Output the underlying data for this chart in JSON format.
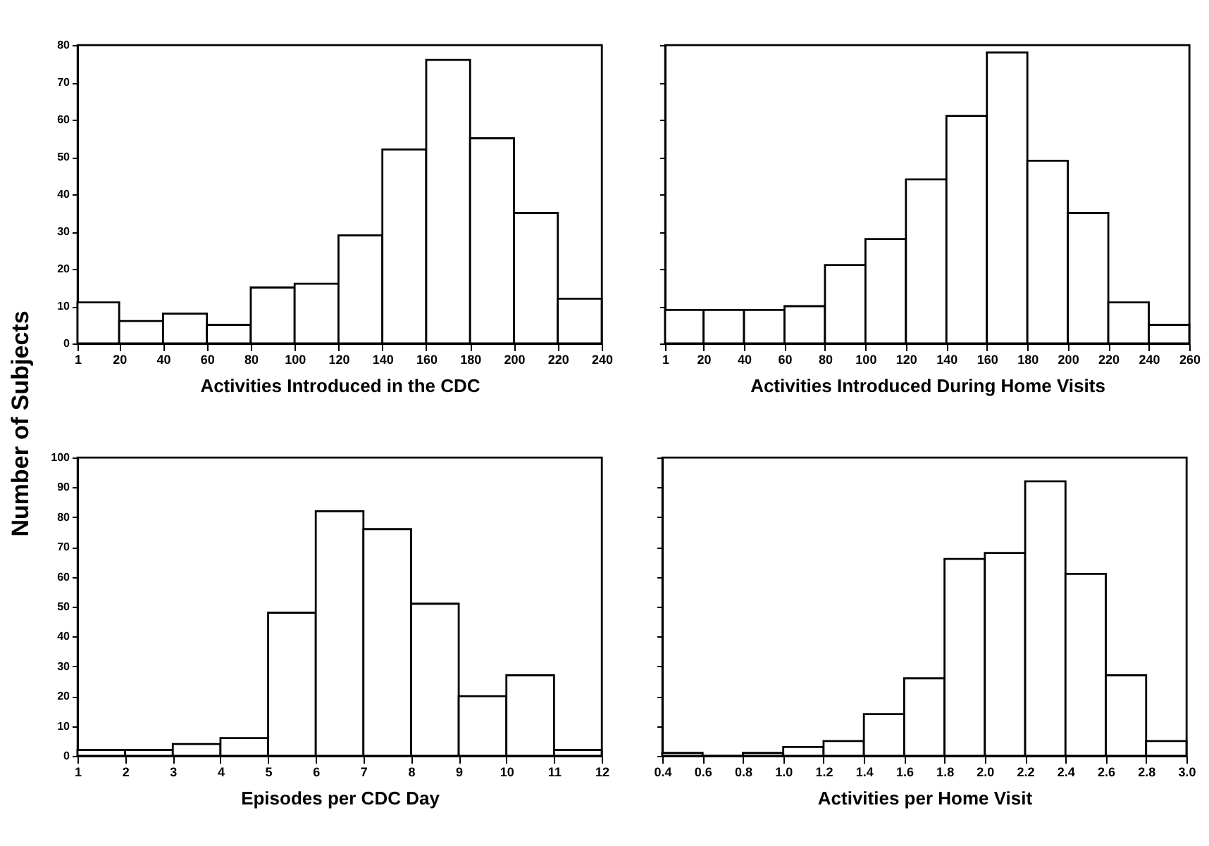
{
  "chart_data": [
    {
      "type": "histogram",
      "xlabel": "Activities Introduced in the CDC",
      "ylabel": "Number of Subjects",
      "bins": [
        1,
        20,
        40,
        60,
        80,
        100,
        120,
        140,
        160,
        180,
        200,
        220,
        240
      ],
      "values": [
        11,
        6,
        8,
        5,
        15,
        16,
        29,
        52,
        76,
        55,
        35,
        12
      ],
      "xlim": [
        1,
        240
      ],
      "xticks": [
        1,
        20,
        40,
        60,
        80,
        100,
        120,
        140,
        160,
        180,
        200,
        220,
        240
      ],
      "ylim": [
        0,
        80
      ],
      "yticks": [
        0,
        10,
        20,
        30,
        40,
        50,
        60,
        70,
        80
      ]
    },
    {
      "type": "histogram",
      "xlabel": "Activities Introduced During Home Visits",
      "bins": [
        1,
        20,
        40,
        60,
        80,
        100,
        120,
        140,
        160,
        180,
        200,
        220,
        240,
        260
      ],
      "values": [
        9,
        9,
        9,
        10,
        21,
        28,
        44,
        61,
        78,
        49,
        35,
        11,
        5
      ],
      "xlim": [
        1,
        260
      ],
      "xticks": [
        1,
        20,
        40,
        60,
        80,
        100,
        120,
        140,
        160,
        180,
        200,
        220,
        240,
        260
      ],
      "ylim": [
        0,
        80
      ],
      "yticks": [
        0,
        10,
        20,
        30,
        40,
        50,
        60,
        70,
        80
      ],
      "tick_labels": "x"
    },
    {
      "type": "histogram",
      "xlabel": "Episodes per CDC Day",
      "bins": [
        1,
        2,
        3,
        4,
        5,
        6,
        7,
        8,
        9,
        10,
        11,
        12
      ],
      "values": [
        2,
        2,
        4,
        6,
        48,
        82,
        76,
        51,
        20,
        27,
        2
      ],
      "xlim": [
        1,
        12
      ],
      "xticks": [
        1,
        2,
        3,
        4,
        5,
        6,
        7,
        8,
        9,
        10,
        11,
        12
      ],
      "ylim": [
        0,
        100
      ],
      "yticks": [
        0,
        10,
        20,
        30,
        40,
        50,
        60,
        70,
        80,
        90,
        100
      ]
    },
    {
      "type": "histogram",
      "xlabel": "Activities per Home Visit",
      "bins": [
        0.4,
        0.6,
        0.8,
        1.0,
        1.2,
        1.4,
        1.6,
        1.8,
        2.0,
        2.2,
        2.4,
        2.6,
        2.8,
        3.0
      ],
      "values": [
        1,
        0,
        1,
        3,
        5,
        14,
        26,
        66,
        68,
        92,
        61,
        27,
        5
      ],
      "xlim": [
        0.4,
        3.0
      ],
      "xticks": [
        0.4,
        0.6,
        0.8,
        {
          "value": 1.0,
          "label": "1.0"
        },
        1.2,
        1.4,
        1.6,
        1.8,
        {
          "value": 2.0,
          "label": "2.0"
        },
        2.2,
        2.4,
        2.6,
        2.8,
        {
          "value": 3.0,
          "label": "3.0"
        }
      ],
      "ylim": [
        0,
        100
      ],
      "yticks": [
        0,
        10,
        20,
        30,
        40,
        50,
        60,
        70,
        80,
        90,
        100
      ],
      "tick_labels": "x"
    }
  ]
}
